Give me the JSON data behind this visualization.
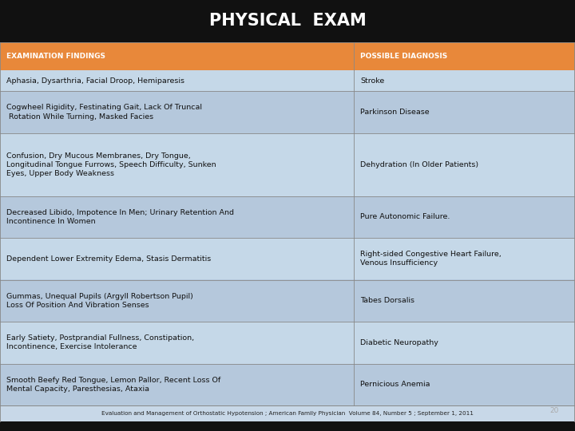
{
  "title": "PHYSICAL  EXAM",
  "title_color": "#FFFFFF",
  "title_bg": "#111111",
  "header": [
    "EXAMINATION FINDINGS",
    "POSSIBLE DIAGNOSIS"
  ],
  "header_bg": "#E8883A",
  "header_text_color": "#FFFFFF",
  "rows": [
    [
      "Aphasia, Dysarthria, Facial Droop, Hemiparesis",
      "Stroke"
    ],
    [
      "Cogwheel Rigidity, Festinating Gait, Lack Of Truncal\n Rotation While Turning, Masked Facies",
      "Parkinson Disease"
    ],
    [
      "Confusion, Dry Mucous Membranes, Dry Tongue,\nLongitudinal Tongue Furrows, Speech Difficulty, Sunken\nEyes, Upper Body Weakness",
      "Dehydration (In Older Patients)"
    ],
    [
      "Decreased Libido, Impotence In Men; Urinary Retention And\nIncontinence In Women",
      "Pure Autonomic Failure."
    ],
    [
      "Dependent Lower Extremity Edema, Stasis Dermatitis",
      "Right-sided Congestive Heart Failure,\nVenous Insufficiency"
    ],
    [
      "Gummas, Unequal Pupils (Argyll Robertson Pupil)\nLoss Of Position And Vibration Senses",
      "Tabes Dorsalis"
    ],
    [
      "Early Satiety, Postprandial Fullness, Constipation,\nIncontinence, Exercise Intolerance",
      "Diabetic Neuropathy"
    ],
    [
      "Smooth Beefy Red Tongue, Lemon Pallor, Recent Loss Of\nMental Capacity, Paresthesias, Ataxia",
      "Pernicious Anemia"
    ]
  ],
  "row_bg_even": "#C8D8E8",
  "row_bg_odd": "#B8CCD E",
  "row_text_color": "#111111",
  "col_split": 0.615,
  "footer": "Evaluation and Management of Orthostatic Hypotension ; American Family Physician  Volume 84, Number 5 ; September 1, 2011",
  "footer_color": "#222222",
  "footer_bg": "#C8D8E8",
  "page_num": "20",
  "page_num_color": "#aaaaaa",
  "background": "#111111",
  "border_color": "#888888",
  "title_font_size": 15,
  "header_font_size": 6.5,
  "row_font_size": 6.8,
  "footer_font_size": 5.2
}
